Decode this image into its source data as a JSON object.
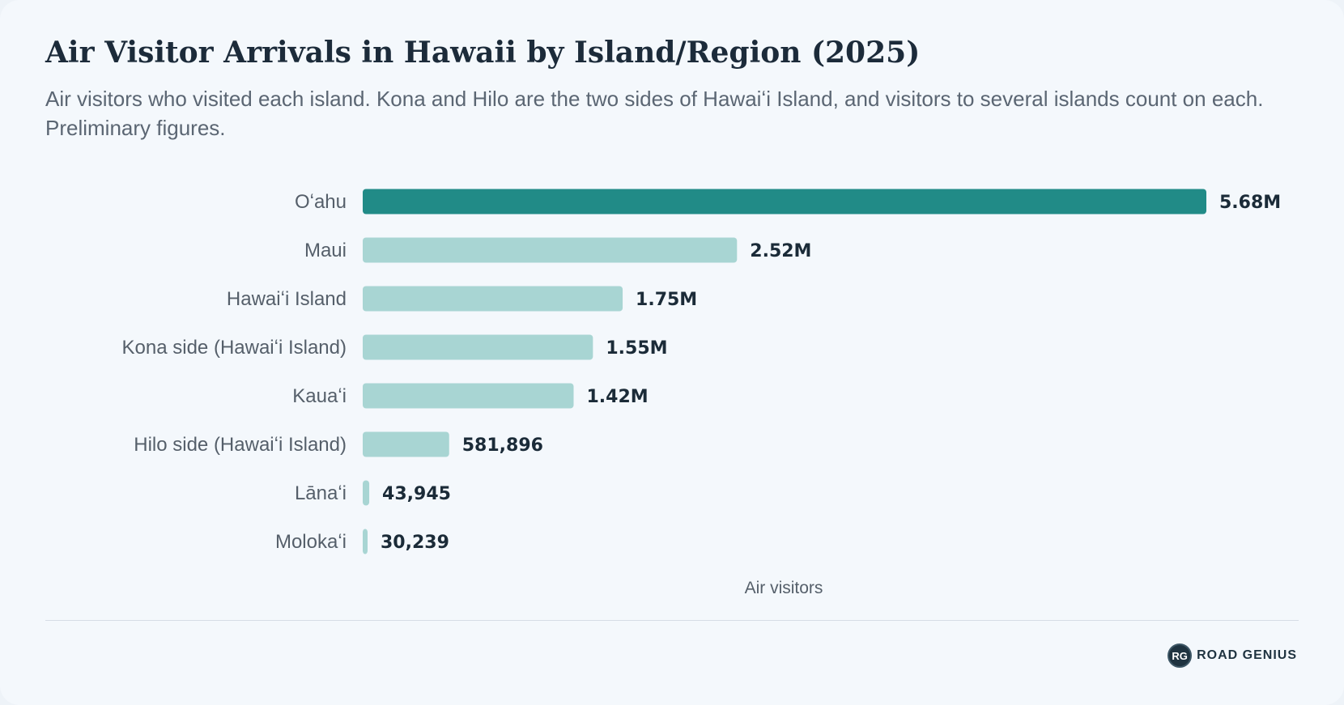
{
  "title": "Air Visitor Arrivals in Hawaii by Island/Region (2025)",
  "subtitle": "Air visitors who visited each island. Kona and Hilo are the two sides of Hawaiʻi Island, and visitors to several islands count on each. Preliminary figures.",
  "brand": {
    "logo_text": "RG",
    "name": "ROAD GENIUS"
  },
  "colors": {
    "highlight": "#218b87",
    "bar": "#a8d5d3",
    "label": "#555f6a",
    "value": "#1b2b38"
  },
  "chart_data": {
    "type": "bar",
    "orientation": "horizontal",
    "title": "Air Visitor Arrivals in Hawaii by Island/Region (2025)",
    "xlabel": "Air visitors",
    "ylabel": "",
    "categories": [
      "Oʻahu",
      "Maui",
      "Hawaiʻi Island",
      "Kona side (Hawaiʻi Island)",
      "Kauaʻi",
      "Hilo side (Hawaiʻi Island)",
      "Lānaʻi",
      "Molokaʻi"
    ],
    "values": [
      5680000,
      2520000,
      1750000,
      1550000,
      1420000,
      581896,
      43945,
      30239
    ],
    "value_labels": [
      "5.68M",
      "2.52M",
      "1.75M",
      "1.55M",
      "1.42M",
      "581,896",
      "43,945",
      "30,239"
    ],
    "highlight_index": 0,
    "xlim": [
      0,
      5680000
    ],
    "grid": false
  }
}
